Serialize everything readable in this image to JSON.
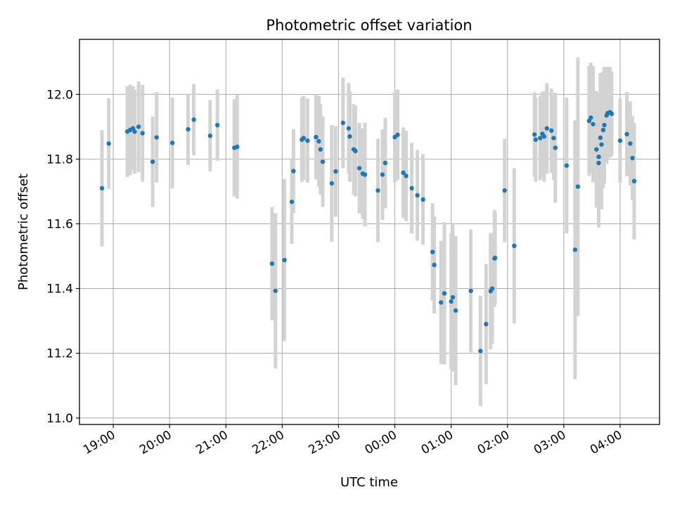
{
  "chart_data": {
    "type": "scatter",
    "title": "Photometric offset variation",
    "xlabel": "UTC time",
    "ylabel": "Photometric offset",
    "x_tick_labels": [
      "19:00",
      "20:00",
      "21:00",
      "22:00",
      "23:00",
      "00:00",
      "01:00",
      "02:00",
      "03:00",
      "04:00"
    ],
    "x_tick_hours": [
      19,
      20,
      21,
      22,
      23,
      24,
      25,
      26,
      27,
      28
    ],
    "y_ticks": [
      11.0,
      11.2,
      11.4,
      11.6,
      11.8,
      12.0
    ],
    "y_tick_labels": [
      "11.0",
      "11.2",
      "11.4",
      "11.6",
      "11.8",
      "12.0"
    ],
    "xlim_hours": [
      18.4,
      28.7
    ],
    "ylim": [
      10.98,
      12.17
    ],
    "grid": true,
    "marker_color": "#1f77b4",
    "errorbar_color": "#d3d3d3",
    "x_hours_note_hours_after_midnight_previous_day": "",
    "points": [
      {
        "x": 18.8,
        "y": 11.71,
        "err": 0.18
      },
      {
        "x": 18.92,
        "y": 11.848,
        "err": 0.14
      },
      {
        "x": 19.25,
        "y": 11.885,
        "err": 0.14
      },
      {
        "x": 19.3,
        "y": 11.89,
        "err": 0.14
      },
      {
        "x": 19.35,
        "y": 11.895,
        "err": 0.13
      },
      {
        "x": 19.38,
        "y": 11.885,
        "err": 0.13
      },
      {
        "x": 19.45,
        "y": 11.9,
        "err": 0.14
      },
      {
        "x": 19.52,
        "y": 11.88,
        "err": 0.15
      },
      {
        "x": 19.7,
        "y": 11.792,
        "err": 0.14
      },
      {
        "x": 19.77,
        "y": 11.867,
        "err": 0.14
      },
      {
        "x": 20.05,
        "y": 11.85,
        "err": 0.14
      },
      {
        "x": 20.33,
        "y": 11.892,
        "err": 0.11
      },
      {
        "x": 20.43,
        "y": 11.922,
        "err": 0.11
      },
      {
        "x": 20.72,
        "y": 11.872,
        "err": 0.11
      },
      {
        "x": 20.85,
        "y": 11.905,
        "err": 0.11
      },
      {
        "x": 21.15,
        "y": 11.835,
        "err": 0.15
      },
      {
        "x": 21.2,
        "y": 11.838,
        "err": 0.16
      },
      {
        "x": 21.82,
        "y": 11.477,
        "err": 0.175
      },
      {
        "x": 21.88,
        "y": 11.393,
        "err": 0.24
      },
      {
        "x": 22.04,
        "y": 11.488,
        "err": 0.25
      },
      {
        "x": 22.17,
        "y": 11.668,
        "err": 0.13
      },
      {
        "x": 22.2,
        "y": 11.763,
        "err": 0.13
      },
      {
        "x": 22.35,
        "y": 11.86,
        "err": 0.13
      },
      {
        "x": 22.38,
        "y": 11.865,
        "err": 0.13
      },
      {
        "x": 22.45,
        "y": 11.857,
        "err": 0.13
      },
      {
        "x": 22.6,
        "y": 11.868,
        "err": 0.13
      },
      {
        "x": 22.65,
        "y": 11.855,
        "err": 0.14
      },
      {
        "x": 22.68,
        "y": 11.83,
        "err": 0.14
      },
      {
        "x": 22.72,
        "y": 11.792,
        "err": 0.14
      },
      {
        "x": 22.88,
        "y": 11.725,
        "err": 0.18
      },
      {
        "x": 22.95,
        "y": 11.762,
        "err": 0.14
      },
      {
        "x": 23.08,
        "y": 11.912,
        "err": 0.14
      },
      {
        "x": 23.18,
        "y": 11.895,
        "err": 0.14
      },
      {
        "x": 23.2,
        "y": 11.87,
        "err": 0.14
      },
      {
        "x": 23.27,
        "y": 11.83,
        "err": 0.14
      },
      {
        "x": 23.3,
        "y": 11.825,
        "err": 0.14
      },
      {
        "x": 23.37,
        "y": 11.772,
        "err": 0.14
      },
      {
        "x": 23.43,
        "y": 11.755,
        "err": 0.14
      },
      {
        "x": 23.47,
        "y": 11.752,
        "err": 0.16
      },
      {
        "x": 23.7,
        "y": 11.703,
        "err": 0.16
      },
      {
        "x": 23.78,
        "y": 11.752,
        "err": 0.14
      },
      {
        "x": 23.83,
        "y": 11.788,
        "err": 0.14
      },
      {
        "x": 24.0,
        "y": 11.868,
        "err": 0.14
      },
      {
        "x": 24.05,
        "y": 11.875,
        "err": 0.14
      },
      {
        "x": 24.15,
        "y": 11.758,
        "err": 0.14
      },
      {
        "x": 24.2,
        "y": 11.748,
        "err": 0.14
      },
      {
        "x": 24.3,
        "y": 11.71,
        "err": 0.14
      },
      {
        "x": 24.4,
        "y": 11.688,
        "err": 0.14
      },
      {
        "x": 24.5,
        "y": 11.675,
        "err": 0.14
      },
      {
        "x": 24.67,
        "y": 11.513,
        "err": 0.15
      },
      {
        "x": 24.7,
        "y": 11.473,
        "err": 0.15
      },
      {
        "x": 24.82,
        "y": 11.357,
        "err": 0.19
      },
      {
        "x": 24.88,
        "y": 11.385,
        "err": 0.22
      },
      {
        "x": 25.0,
        "y": 11.36,
        "err": 0.21
      },
      {
        "x": 25.03,
        "y": 11.373,
        "err": 0.23
      },
      {
        "x": 25.08,
        "y": 11.332,
        "err": 0.23
      },
      {
        "x": 25.35,
        "y": 11.393,
        "err": 0.19
      },
      {
        "x": 25.52,
        "y": 11.207,
        "err": 0.17
      },
      {
        "x": 25.62,
        "y": 11.29,
        "err": 0.185
      },
      {
        "x": 25.7,
        "y": 11.392,
        "err": 0.18
      },
      {
        "x": 25.73,
        "y": 11.4,
        "err": 0.17
      },
      {
        "x": 25.77,
        "y": 11.493,
        "err": 0.15
      },
      {
        "x": 25.78,
        "y": 11.495,
        "err": 0.14
      },
      {
        "x": 25.95,
        "y": 11.703,
        "err": 0.16
      },
      {
        "x": 26.12,
        "y": 11.532,
        "err": 0.24
      },
      {
        "x": 26.48,
        "y": 11.876,
        "err": 0.13
      },
      {
        "x": 26.5,
        "y": 11.86,
        "err": 0.13
      },
      {
        "x": 26.58,
        "y": 11.865,
        "err": 0.13
      },
      {
        "x": 26.62,
        "y": 11.878,
        "err": 0.13
      },
      {
        "x": 26.65,
        "y": 11.87,
        "err": 0.14
      },
      {
        "x": 26.7,
        "y": 11.895,
        "err": 0.14
      },
      {
        "x": 26.78,
        "y": 11.888,
        "err": 0.13
      },
      {
        "x": 26.82,
        "y": 11.865,
        "err": 0.13
      },
      {
        "x": 26.85,
        "y": 11.835,
        "err": 0.17
      },
      {
        "x": 27.05,
        "y": 11.78,
        "err": 0.21
      },
      {
        "x": 27.2,
        "y": 11.52,
        "err": 0.4
      },
      {
        "x": 27.25,
        "y": 11.715,
        "err": 0.4
      },
      {
        "x": 27.45,
        "y": 11.918,
        "err": 0.17
      },
      {
        "x": 27.48,
        "y": 11.928,
        "err": 0.17
      },
      {
        "x": 27.52,
        "y": 11.908,
        "err": 0.18
      },
      {
        "x": 27.58,
        "y": 11.83,
        "err": 0.18
      },
      {
        "x": 27.62,
        "y": 11.807,
        "err": 0.19
      },
      {
        "x": 27.62,
        "y": 11.788,
        "err": 0.2
      },
      {
        "x": 27.65,
        "y": 11.866,
        "err": 0.2
      },
      {
        "x": 27.67,
        "y": 11.845,
        "err": 0.2
      },
      {
        "x": 27.7,
        "y": 11.89,
        "err": 0.18
      },
      {
        "x": 27.72,
        "y": 11.905,
        "err": 0.18
      },
      {
        "x": 27.76,
        "y": 11.935,
        "err": 0.15
      },
      {
        "x": 27.78,
        "y": 11.942,
        "err": 0.14
      },
      {
        "x": 27.82,
        "y": 11.945,
        "err": 0.14
      },
      {
        "x": 27.85,
        "y": 11.94,
        "err": 0.13
      },
      {
        "x": 28.0,
        "y": 11.857,
        "err": 0.13
      },
      {
        "x": 28.12,
        "y": 11.877,
        "err": 0.13
      },
      {
        "x": 28.18,
        "y": 11.848,
        "err": 0.13
      },
      {
        "x": 28.22,
        "y": 11.803,
        "err": 0.13
      },
      {
        "x": 28.25,
        "y": 11.732,
        "err": 0.18
      }
    ]
  }
}
